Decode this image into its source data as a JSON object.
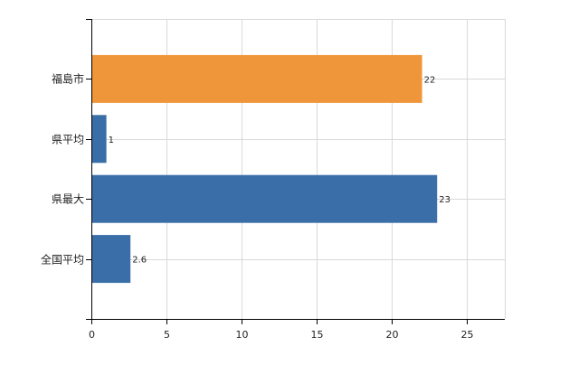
{
  "chart_data": {
    "type": "bar",
    "orientation": "horizontal",
    "categories": [
      "福島市",
      "県平均",
      "県最大",
      "全国平均"
    ],
    "values": [
      22,
      1,
      23,
      2.6
    ],
    "data_labels": [
      "22",
      "1",
      "23",
      "2.6"
    ],
    "bar_colors": [
      "#f0963a",
      "#3a6ea8",
      "#3a6ea8",
      "#3a6ea8"
    ],
    "x_ticks": [
      0,
      5,
      10,
      15,
      20,
      25
    ],
    "x_tick_labels": [
      "0",
      "5",
      "10",
      "15",
      "20",
      "25"
    ],
    "xlim": [
      0,
      27.5
    ],
    "grid": true,
    "title": "",
    "xlabel": "",
    "ylabel": ""
  }
}
